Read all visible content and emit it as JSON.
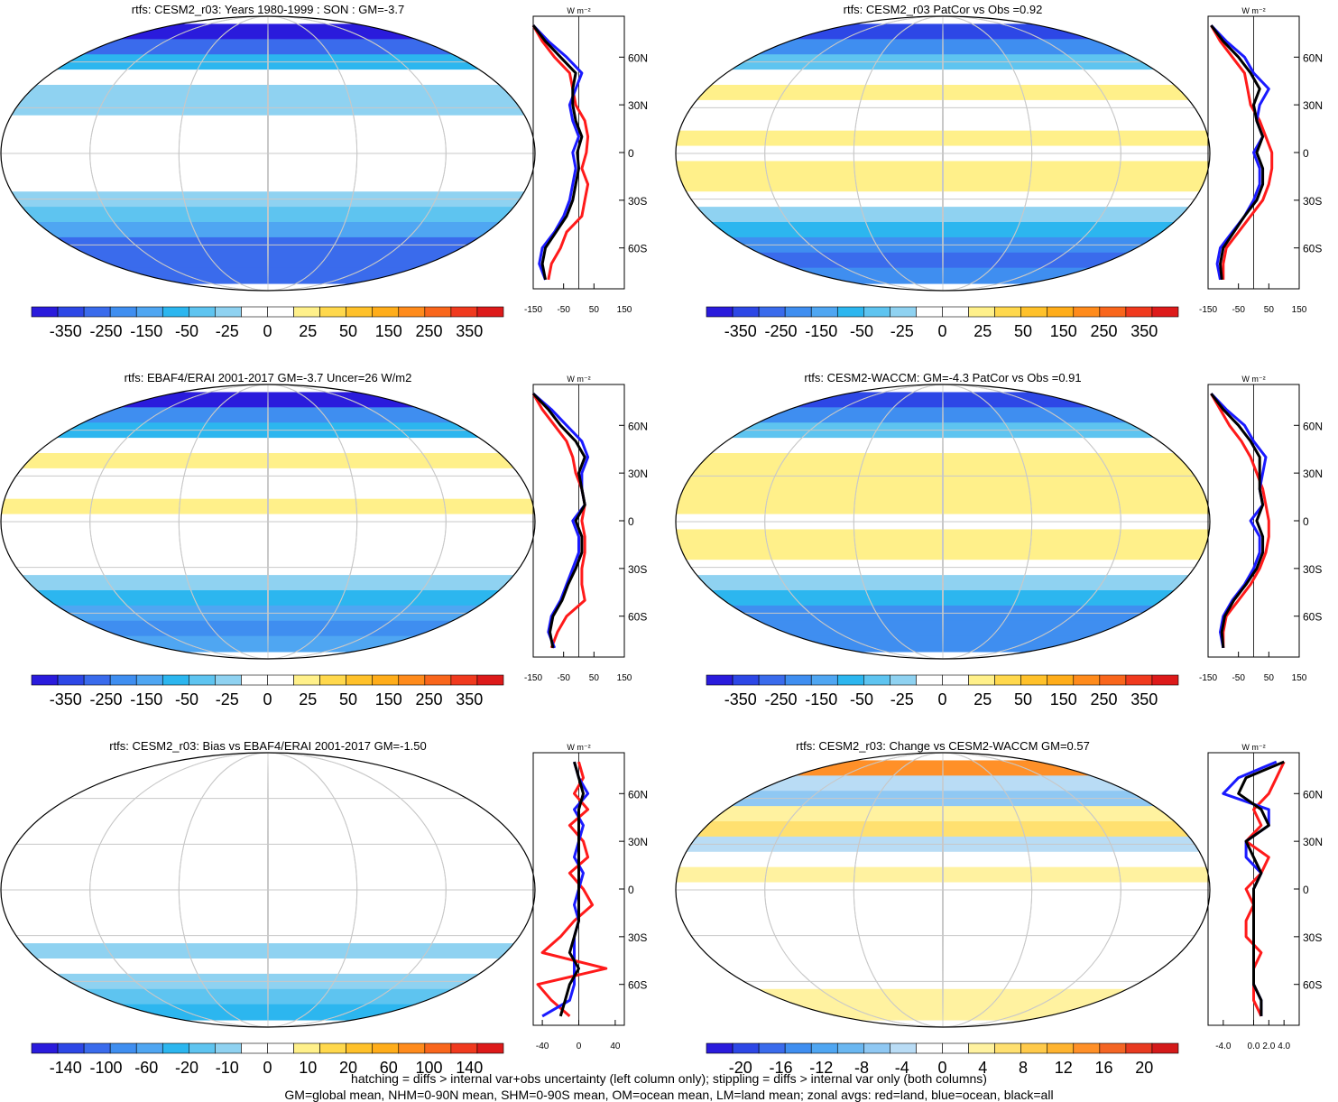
{
  "colors": {
    "land": "#ff1a1a",
    "ocean": "#1a1aff",
    "all": "#000000",
    "gridline": "#c8c8c8"
  },
  "palette": {
    "main": [
      "#2a1bdc",
      "#2d47e6",
      "#3a6bec",
      "#3f8ef0",
      "#4fa6f2",
      "#2cb6ef",
      "#5ec4f0",
      "#8fd2f1",
      "#ffffff",
      "#ffffff",
      "#fff08a",
      "#ffd84c",
      "#ffc12a",
      "#ffad1a",
      "#ff8b1c",
      "#f9661c",
      "#f03a1e",
      "#dd1a1a"
    ],
    "change": [
      "#2a1bdc",
      "#2d47e6",
      "#3a6bec",
      "#3f8ef0",
      "#4fa6f2",
      "#6ab7f1",
      "#8fc8f3",
      "#b9dcf5",
      "#ffffff",
      "#ffffff",
      "#fff2a0",
      "#ffe070",
      "#ffca4a",
      "#ffb430",
      "#ff9028",
      "#f46524",
      "#e83a20",
      "#d41a1a"
    ]
  },
  "footer": {
    "line1": "hatching = diffs > internal var+obs uncertainty (left column only); stippling = diffs > internal var only (both columns)",
    "line2": "GM=global mean, NHM=0-90N mean, SHM=0-90S mean, OM=ocean mean, LM=land mean; zonal avgs: red=land, blue=ocean, black=all"
  },
  "chart_data": [
    {
      "type": "heatmap",
      "title": "rtfs: CESM2_r03: Years 1980-1999 : SON : GM=-3.7",
      "colorbar_labels": [
        "-350",
        "-250",
        "-150",
        "-50",
        "-25",
        "0",
        "25",
        "50",
        "150",
        "250",
        "350"
      ],
      "zonal": {
        "type": "line",
        "units": "W m⁻²",
        "xticks": [
          "-150",
          "-50",
          "50",
          "150"
        ],
        "xlim": [
          -150,
          150
        ],
        "yticks": [
          "60N",
          "30N",
          "0",
          "30S",
          "60S"
        ],
        "lat": [
          80,
          70,
          60,
          50,
          40,
          30,
          20,
          10,
          0,
          -10,
          -20,
          -30,
          -40,
          -50,
          -60,
          -70,
          -80
        ],
        "series": [
          {
            "name": "land",
            "values": [
              -150,
              -120,
              -80,
              -30,
              -20,
              -10,
              20,
              30,
              25,
              10,
              30,
              20,
              10,
              -40,
              -60,
              -90,
              -100
            ]
          },
          {
            "name": "ocean",
            "values": [
              -150,
              -100,
              -40,
              10,
              -10,
              -30,
              -20,
              0,
              -20,
              -10,
              -20,
              -30,
              -50,
              -80,
              -120,
              -130,
              -110
            ]
          },
          {
            "name": "all",
            "values": [
              -150,
              -110,
              -60,
              -10,
              -20,
              -20,
              -10,
              10,
              -5,
              0,
              -10,
              -20,
              -40,
              -75,
              -110,
              -120,
              -110
            ]
          }
        ]
      }
    },
    {
      "type": "heatmap",
      "title": "rtfs: CESM2_r03 PatCor vs Obs =0.92",
      "colorbar_labels": [
        "-350",
        "-250",
        "-150",
        "-50",
        "-25",
        "0",
        "25",
        "50",
        "150",
        "250",
        "350"
      ],
      "zonal": {
        "type": "line",
        "units": "W m⁻²",
        "xticks": [
          "-150",
          "-50",
          "50",
          "150"
        ],
        "xlim": [
          -150,
          150
        ],
        "yticks": [
          "60N",
          "30N",
          "0",
          "30S",
          "60S"
        ],
        "lat": [
          80,
          70,
          60,
          50,
          40,
          30,
          20,
          10,
          0,
          -10,
          -20,
          -30,
          -40,
          -50,
          -60,
          -70,
          -80
        ],
        "series": [
          {
            "name": "land",
            "values": [
              -140,
              -110,
              -70,
              -30,
              -20,
              -10,
              20,
              40,
              60,
              60,
              50,
              30,
              -10,
              -50,
              -90,
              -100,
              -100
            ]
          },
          {
            "name": "ocean",
            "values": [
              -140,
              -90,
              -30,
              0,
              50,
              20,
              10,
              30,
              0,
              20,
              20,
              0,
              -30,
              -70,
              -110,
              -120,
              -110
            ]
          },
          {
            "name": "all",
            "values": [
              -140,
              -100,
              -50,
              -10,
              20,
              0,
              10,
              30,
              10,
              30,
              30,
              10,
              -30,
              -65,
              -100,
              -110,
              -105
            ]
          }
        ]
      }
    },
    {
      "type": "heatmap",
      "title": "rtfs: EBAF4/ERAI 2001-2017 GM=-3.7 Uncer=26 W/m2",
      "colorbar_labels": [
        "-350",
        "-250",
        "-150",
        "-50",
        "-25",
        "0",
        "25",
        "50",
        "150",
        "250",
        "350"
      ],
      "zonal": {
        "type": "line",
        "units": "W m⁻²",
        "xticks": [
          "-150",
          "-50",
          "50",
          "150"
        ],
        "xlim": [
          -150,
          150
        ],
        "yticks": [
          "60N",
          "30N",
          "0",
          "30S",
          "60S"
        ],
        "lat": [
          80,
          70,
          60,
          50,
          40,
          30,
          20,
          10,
          0,
          -10,
          -20,
          -30,
          -40,
          -50,
          -60,
          -70,
          -80
        ],
        "series": [
          {
            "name": "land",
            "values": [
              -150,
              -120,
              -80,
              -40,
              -20,
              -10,
              10,
              20,
              10,
              20,
              20,
              10,
              10,
              20,
              -40,
              -70,
              -90
            ]
          },
          {
            "name": "ocean",
            "values": [
              -150,
              -90,
              -40,
              10,
              30,
              10,
              10,
              20,
              -20,
              0,
              0,
              -20,
              -40,
              -60,
              -90,
              -100,
              -80
            ]
          },
          {
            "name": "all",
            "values": [
              -150,
              -100,
              -60,
              -10,
              20,
              0,
              10,
              20,
              -10,
              10,
              10,
              -10,
              -35,
              -55,
              -85,
              -95,
              -85
            ]
          }
        ]
      }
    },
    {
      "type": "heatmap",
      "title": "rtfs: CESM2-WACCM: GM=-4.3 PatCor vs Obs =0.91",
      "colorbar_labels": [
        "-350",
        "-250",
        "-150",
        "-50",
        "-25",
        "0",
        "25",
        "50",
        "150",
        "250",
        "350"
      ],
      "zonal": {
        "type": "line",
        "units": "W m⁻²",
        "xticks": [
          "-150",
          "-50",
          "50",
          "150"
        ],
        "xlim": [
          -150,
          150
        ],
        "yticks": [
          "60N",
          "30N",
          "0",
          "30S",
          "60S"
        ],
        "lat": [
          80,
          70,
          60,
          50,
          40,
          30,
          20,
          10,
          0,
          -10,
          -20,
          -30,
          -40,
          -50,
          -60,
          -70,
          -80
        ],
        "series": [
          {
            "name": "land",
            "values": [
              -140,
              -110,
              -80,
              -40,
              -10,
              10,
              30,
              40,
              50,
              50,
              40,
              20,
              -10,
              -50,
              -90,
              -100,
              -100
            ]
          },
          {
            "name": "ocean",
            "values": [
              -140,
              -90,
              -30,
              0,
              40,
              30,
              20,
              30,
              -10,
              20,
              20,
              0,
              -30,
              -70,
              -100,
              -110,
              -100
            ]
          },
          {
            "name": "all",
            "values": [
              -140,
              -100,
              -50,
              -10,
              20,
              20,
              20,
              30,
              10,
              30,
              30,
              10,
              -25,
              -65,
              -95,
              -105,
              -100
            ]
          }
        ]
      }
    },
    {
      "type": "heatmap",
      "title": "rtfs: CESM2_r03: Bias vs EBAF4/ERAI 2001-2017  GM=-1.50",
      "colorbar_labels": [
        "-140",
        "-100",
        "-60",
        "-20",
        "-10",
        "0",
        "10",
        "20",
        "60",
        "100",
        "140"
      ],
      "zonal": {
        "type": "line",
        "units": "W m⁻²",
        "xticks": [
          "-40",
          "0",
          "40"
        ],
        "xlim": [
          -50,
          50
        ],
        "yticks": [
          "60N",
          "30N",
          "0",
          "30S",
          "60S"
        ],
        "lat": [
          80,
          70,
          60,
          50,
          40,
          30,
          20,
          10,
          0,
          -10,
          -20,
          -30,
          -40,
          -50,
          -60,
          -70,
          -80
        ],
        "series": [
          {
            "name": "land",
            "values": [
              0,
              5,
              -5,
              10,
              -10,
              5,
              10,
              -10,
              5,
              15,
              -5,
              -20,
              -40,
              30,
              -45,
              -30,
              -10
            ]
          },
          {
            "name": "ocean",
            "values": [
              -5,
              0,
              10,
              -5,
              5,
              0,
              -5,
              5,
              0,
              -5,
              0,
              -5,
              -5,
              -5,
              -5,
              -10,
              -40
            ]
          },
          {
            "name": "all",
            "values": [
              -5,
              0,
              5,
              0,
              0,
              0,
              0,
              0,
              0,
              0,
              0,
              -5,
              -10,
              0,
              -10,
              -15,
              -20
            ]
          }
        ]
      }
    },
    {
      "type": "heatmap",
      "title": "rtfs: CESM2_r03: Change vs CESM2-WACCM GM=0.57",
      "colorbar_labels": [
        "-20",
        "-16",
        "-12",
        "-8",
        "-4",
        "0",
        "4",
        "8",
        "12",
        "16",
        "20"
      ],
      "zonal": {
        "type": "line",
        "units": "W m⁻²",
        "xticks": [
          "-4.0",
          "0.0",
          "2.0",
          "4.0"
        ],
        "xlim": [
          -6,
          6
        ],
        "yticks": [
          "60N",
          "30N",
          "0",
          "30S",
          "60S"
        ],
        "lat": [
          80,
          70,
          60,
          50,
          40,
          30,
          20,
          10,
          0,
          -10,
          -20,
          -30,
          -40,
          -50,
          -60,
          -70,
          -80
        ],
        "series": [
          {
            "name": "land",
            "values": [
              4,
              3,
              2,
              0,
              1,
              -1,
              2,
              1,
              -1,
              0,
              -1,
              -1,
              1,
              0,
              0,
              0,
              1
            ]
          },
          {
            "name": "ocean",
            "values": [
              3,
              -2,
              -4,
              2,
              2,
              -1,
              -1,
              1,
              0,
              0,
              0,
              0,
              0,
              0,
              0,
              1,
              1
            ]
          },
          {
            "name": "all",
            "values": [
              4,
              -1,
              -2,
              1,
              2,
              -1,
              0,
              1,
              0,
              0,
              0,
              0,
              0,
              0,
              0,
              1,
              1
            ]
          }
        ]
      }
    }
  ]
}
